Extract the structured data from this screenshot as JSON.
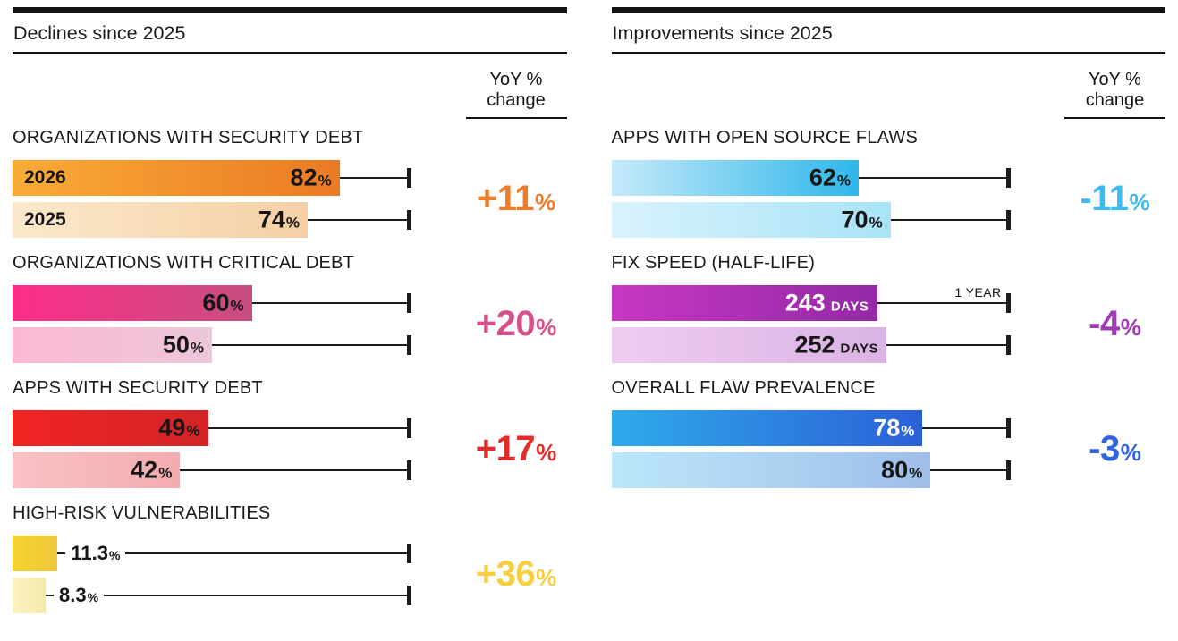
{
  "panels": [
    {
      "title": "Declines since 2025",
      "yoy_header": {
        "line1": "YoY %",
        "line2": "change"
      },
      "sections": [
        {
          "title": "ORGANIZATIONS WITH SECURITY DEBT",
          "yoy": {
            "text": "+11",
            "unit": "%",
            "color": "#ED7C2B"
          },
          "bars": [
            {
              "year_label": "2026",
              "num": "82",
              "unit": "%",
              "width_pct": 82,
              "grad": [
                "#F9AB37",
                "#EB7A24"
              ],
              "value_style": "inside",
              "value_color": "#161616"
            },
            {
              "year_label": "2025",
              "num": "74",
              "unit": "%",
              "width_pct": 74,
              "grad": [
                "#FBE9CB",
                "#F5CFA6"
              ],
              "value_style": "inside",
              "value_color": "#161616"
            }
          ]
        },
        {
          "title": "ORGANIZATIONS WITH CRITICAL DEBT",
          "yoy": {
            "text": "+20",
            "unit": "%",
            "color": "#D85089"
          },
          "bars": [
            {
              "num": "60",
              "unit": "%",
              "width_pct": 60,
              "grad": [
                "#FB2E88",
                "#C74E80"
              ],
              "value_style": "inside",
              "value_color": "#161616"
            },
            {
              "num": "50",
              "unit": "%",
              "width_pct": 50,
              "grad": [
                "#FBB8D5",
                "#ECC6DA"
              ],
              "value_style": "inside",
              "value_color": "#161616"
            }
          ]
        },
        {
          "title": "APPS WITH SECURITY DEBT",
          "yoy": {
            "text": "+17",
            "unit": "%",
            "color": "#E32C29"
          },
          "bars": [
            {
              "num": "49",
              "unit": "%",
              "width_pct": 49,
              "grad": [
                "#F32323",
                "#D12428"
              ],
              "value_style": "inside",
              "value_color": "#161616"
            },
            {
              "num": "42",
              "unit": "%",
              "width_pct": 42,
              "grad": [
                "#F8C2C4",
                "#F3ACB0"
              ],
              "value_style": "inside",
              "value_color": "#161616"
            }
          ]
        },
        {
          "title": "HIGH-RISK VULNERABILITIES",
          "yoy": {
            "text": "+36",
            "unit": "%",
            "color": "#F7CE3F"
          },
          "bars": [
            {
              "num": "11.3",
              "unit": "%",
              "width_pct": 11.3,
              "grad": [
                "#F4D52E",
                "#EFC63C"
              ],
              "value_style": "outside",
              "value_color": "#161616"
            },
            {
              "num": "8.3",
              "unit": "%",
              "width_pct": 8.3,
              "grad": [
                "#FBF4C4",
                "#F6E9A9"
              ],
              "value_style": "outside",
              "value_color": "#161616"
            }
          ]
        }
      ]
    },
    {
      "title": "Improvements since 2025",
      "yoy_header": {
        "line1": "YoY %",
        "line2": "change"
      },
      "sections": [
        {
          "title": "APPS WITH OPEN SOURCE FLAWS",
          "yoy": {
            "text": "-11",
            "unit": "%",
            "color": "#3FB9F0"
          },
          "bars": [
            {
              "num": "62",
              "unit": "%",
              "width_pct": 62,
              "grad": [
                "#C5EAFA",
                "#2FB7EA"
              ],
              "value_style": "inside",
              "value_color": "#161616"
            },
            {
              "num": "70",
              "unit": "%",
              "width_pct": 70,
              "grad": [
                "#D9F3FD",
                "#A9E3F8"
              ],
              "value_style": "inside",
              "value_color": "#161616"
            }
          ]
        },
        {
          "title": "FIX SPEED (HALF-LIFE)",
          "yoy": {
            "text": "-4",
            "unit": "%",
            "color": "#A23AB8"
          },
          "bars": [
            {
              "num": "243",
              "unit": "DAYS",
              "width_pct": 66.6,
              "grad": [
                "#C838C4",
                "#9229A5"
              ],
              "value_style": "inside",
              "value_color": "#ffffff",
              "annotation": "1 YEAR"
            },
            {
              "num": "252",
              "unit": "DAYS",
              "width_pct": 69.0,
              "grad": [
                "#F0CBF1",
                "#D9B3E3"
              ],
              "value_style": "inside",
              "value_color": "#161616"
            }
          ]
        },
        {
          "title": "OVERALL FLAW PREVALENCE",
          "yoy": {
            "text": "-3",
            "unit": "%",
            "color": "#3163DF"
          },
          "bars": [
            {
              "num": "78",
              "unit": "%",
              "width_pct": 78,
              "grad": [
                "#2FAAEB",
                "#2B60D7"
              ],
              "value_style": "inside",
              "value_color": "#ffffff"
            },
            {
              "num": "80",
              "unit": "%",
              "width_pct": 80,
              "grad": [
                "#BCE7FA",
                "#9EBEE9"
              ],
              "value_style": "inside",
              "value_color": "#161616"
            }
          ]
        }
      ]
    }
  ],
  "chart_data": [
    {
      "type": "bar",
      "orientation": "horizontal",
      "title": "Declines since 2025",
      "series_labels": [
        "2026",
        "2025"
      ],
      "axis": {
        "min": 0,
        "max": 100,
        "whisker_marks": "100%"
      },
      "legend_position": "inside-first-group",
      "groups": [
        {
          "category": "ORGANIZATIONS WITH SECURITY DEBT",
          "values": {
            "2026": 82,
            "2025": 74
          },
          "unit": "%",
          "yoy_change": "+11%"
        },
        {
          "category": "ORGANIZATIONS WITH CRITICAL DEBT",
          "values": {
            "2026": 60,
            "2025": 50
          },
          "unit": "%",
          "yoy_change": "+20%"
        },
        {
          "category": "APPS WITH SECURITY DEBT",
          "values": {
            "2026": 49,
            "2025": 42
          },
          "unit": "%",
          "yoy_change": "+17%"
        },
        {
          "category": "HIGH-RISK VULNERABILITIES",
          "values": {
            "2026": 11.3,
            "2025": 8.3
          },
          "unit": "%",
          "yoy_change": "+36%"
        }
      ]
    },
    {
      "type": "bar",
      "orientation": "horizontal",
      "title": "Improvements since 2025",
      "series_labels": [
        "2026",
        "2025"
      ],
      "axis": {
        "min": 0,
        "max": 100,
        "whisker_marks": "100% (1 YEAR = 365 days for day-based group)"
      },
      "groups": [
        {
          "category": "APPS WITH OPEN SOURCE FLAWS",
          "values": {
            "2026": 62,
            "2025": 70
          },
          "unit": "%",
          "yoy_change": "-11%"
        },
        {
          "category": "FIX SPEED (HALF-LIFE)",
          "values": {
            "2026": 243,
            "2025": 252
          },
          "unit": "DAYS",
          "annotation": "1 YEAR",
          "yoy_change": "-4%"
        },
        {
          "category": "OVERALL FLAW PREVALENCE",
          "values": {
            "2026": 78,
            "2025": 80
          },
          "unit": "%",
          "yoy_change": "-3%"
        }
      ]
    }
  ]
}
